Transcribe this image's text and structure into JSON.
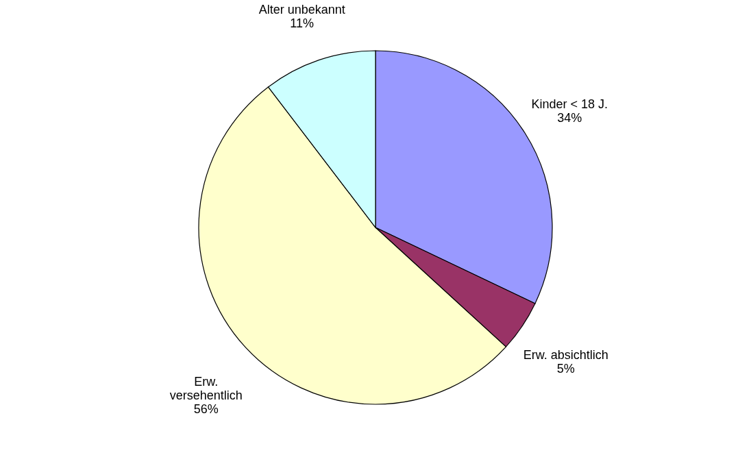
{
  "chart_data": {
    "type": "pie",
    "categories": [
      "Kinder < 18 J.",
      "Erw. absichtlich",
      "Erw.\nversehentlich",
      "Alter unbekannt"
    ],
    "values": [
      34,
      5,
      56,
      11
    ],
    "value_labels": [
      "34%",
      "5%",
      "56%",
      "11%"
    ],
    "colors": [
      "#9999ff",
      "#993366",
      "#ffffcc",
      "#ccffff"
    ]
  }
}
